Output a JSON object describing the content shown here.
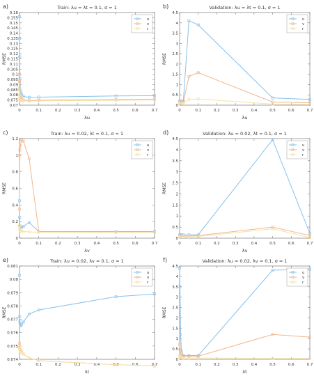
{
  "colors": {
    "u": "#86C1EC",
    "v": "#F2B58C",
    "r": "#F6E1A7"
  },
  "chart_data": [
    {
      "panel": "a)",
      "type": "line",
      "title": "Train:  λu = λt = 0.1,  σ = 1",
      "xlabel": "λu",
      "ylabel": "RMSE",
      "xlim": [
        0,
        0.7
      ],
      "ylim": [
        0.07,
        0.16
      ],
      "xticks": [
        0,
        0.1,
        0.2,
        0.3,
        0.4,
        0.5,
        0.6,
        0.7
      ],
      "xtick_labels": [
        "0",
        "0.1",
        "0.2",
        "0.3",
        "0.4",
        "0.5",
        "0.6",
        "0.7"
      ],
      "yticks": [
        0.07,
        0.075,
        0.08,
        0.085,
        0.09,
        0.095,
        0.1,
        0.105,
        0.11,
        0.115,
        0.12,
        0.125,
        0.13,
        0.135,
        0.14,
        0.145,
        0.15,
        0.155,
        0.16
      ],
      "ytick_labels": [
        "0.07",
        "0.075",
        "0.08",
        "0.085",
        "0.09",
        "0.095",
        "0.1",
        "0.105",
        "0.11",
        "0.115",
        "0.12",
        "0.125",
        "0.13",
        "0.135",
        "0.14",
        "0.145",
        "0.15",
        "0.155",
        "0.16"
      ],
      "legend": [
        "u",
        "v",
        "r"
      ],
      "legend_position": "top-right",
      "x": [
        0,
        0.0005,
        0.001,
        0.002,
        0.005,
        0.01,
        0.02,
        0.05,
        0.1,
        0.5,
        0.7
      ],
      "series": [
        {
          "name": "u",
          "values": [
            0.156,
            0.135,
            0.117,
            0.096,
            0.084,
            0.081,
            0.0785,
            0.0776,
            0.0778,
            0.079,
            0.0792
          ]
        },
        {
          "name": "v",
          "values": [
            0.1,
            0.093,
            0.086,
            0.08,
            0.0775,
            0.0762,
            0.075,
            0.0745,
            0.0748,
            0.0755,
            0.0758
          ]
        },
        {
          "name": "r",
          "values": [
            0.085,
            0.08,
            0.077,
            0.0755,
            0.0748,
            0.0745,
            0.0742,
            0.074,
            0.0742,
            0.0747,
            0.075
          ]
        }
      ]
    },
    {
      "panel": "b)",
      "type": "line",
      "title": "Validation:  λu = λt = 0.1,  σ = 1",
      "xlabel": "λu",
      "ylabel": "RMSE",
      "xlim": [
        0,
        0.7
      ],
      "ylim": [
        0,
        4.5
      ],
      "xticks": [
        0,
        0.1,
        0.2,
        0.3,
        0.4,
        0.5,
        0.6,
        0.7
      ],
      "xtick_labels": [
        "0",
        "0.1",
        "0.2",
        "0.3",
        "0.4",
        "0.5",
        "0.6",
        "0.7"
      ],
      "yticks": [
        0,
        0.5,
        1,
        1.5,
        2,
        2.5,
        3,
        3.5,
        4,
        4.5
      ],
      "ytick_labels": [
        "0",
        "0.5",
        "1",
        "1.5",
        "2",
        "2.5",
        "3",
        "3.5",
        "4",
        "4.5"
      ],
      "legend": [
        "u",
        "v",
        "r"
      ],
      "legend_position": "top-right",
      "x": [
        0,
        0.005,
        0.01,
        0.02,
        0.05,
        0.1,
        0.5,
        0.7
      ],
      "series": [
        {
          "name": "u",
          "values": [
            0.2,
            0.2,
            0.2,
            0.2,
            4.1,
            3.9,
            0.35,
            0.28
          ]
        },
        {
          "name": "v",
          "values": [
            0.15,
            0.15,
            0.15,
            0.15,
            1.4,
            1.58,
            0.15,
            0.12
          ]
        },
        {
          "name": "r",
          "values": [
            0.08,
            0.08,
            0.08,
            0.08,
            0.28,
            0.3,
            0.05,
            0.03
          ]
        }
      ]
    },
    {
      "panel": "c)",
      "type": "line",
      "title": "Train:  λu = 0.02,  λt = 0.1,  σ = 1",
      "xlabel": "λv",
      "ylabel": "RMSE",
      "xlim": [
        0,
        0.7
      ],
      "ylim": [
        0,
        1.2
      ],
      "xticks": [
        0,
        0.1,
        0.2,
        0.3,
        0.4,
        0.5,
        0.6,
        0.7
      ],
      "xtick_labels": [
        "0",
        "0.1",
        "0.2",
        "0.3",
        "0.4",
        "0.5",
        "0.6",
        "0.7"
      ],
      "yticks": [
        0,
        0.2,
        0.4,
        0.6,
        0.8,
        1,
        1.2
      ],
      "ytick_labels": [
        "0",
        "0.2",
        "0.4",
        "0.6",
        "0.8",
        "1",
        "1.2"
      ],
      "legend": [
        "u",
        "v",
        "r"
      ],
      "legend_position": "top-right",
      "x": [
        0,
        0.001,
        0.002,
        0.005,
        0.01,
        0.02,
        0.05,
        0.1,
        0.5,
        0.7
      ],
      "series": [
        {
          "name": "u",
          "values": [
            0.45,
            0.25,
            0.15,
            0.13,
            0.13,
            0.14,
            0.19,
            0.08,
            0.08,
            0.08
          ]
        },
        {
          "name": "v",
          "values": [
            0.35,
            1.0,
            1.06,
            1.12,
            1.18,
            1.17,
            0.96,
            0.08,
            0.075,
            0.075
          ]
        },
        {
          "name": "r",
          "values": [
            0.15,
            0.12,
            0.1,
            0.09,
            0.085,
            0.08,
            0.075,
            0.07,
            0.07,
            0.07
          ]
        }
      ]
    },
    {
      "panel": "d)",
      "type": "line",
      "title": "Validation:  λu = 0.02,  λt = 0.1,  σ = 1",
      "xlabel": "λv",
      "ylabel": "RMSE",
      "xlim": [
        0,
        0.7
      ],
      "ylim": [
        0,
        4.5
      ],
      "xticks": [
        0,
        0.1,
        0.2,
        0.3,
        0.4,
        0.5,
        0.6,
        0.7
      ],
      "xtick_labels": [
        "0",
        "0.1",
        "0.2",
        "0.3",
        "0.4",
        "0.5",
        "0.6",
        "0.7"
      ],
      "yticks": [
        0,
        0.5,
        1,
        1.5,
        2,
        2.5,
        3,
        3.5,
        4,
        4.5
      ],
      "ytick_labels": [
        "0",
        "0.5",
        "1",
        "1.5",
        "2",
        "2.5",
        "3",
        "3.5",
        "4",
        "4.5"
      ],
      "legend": [
        "u",
        "v",
        "r"
      ],
      "legend_position": "top-right",
      "x": [
        0,
        0.005,
        0.01,
        0.02,
        0.05,
        0.1,
        0.5,
        0.7
      ],
      "series": [
        {
          "name": "u",
          "values": [
            0.15,
            0.15,
            0.15,
            0.15,
            0.15,
            0.15,
            4.45,
            0.22
          ]
        },
        {
          "name": "v",
          "values": [
            0.1,
            0.1,
            0.1,
            0.1,
            0.1,
            0.12,
            0.5,
            0.12
          ]
        },
        {
          "name": "r",
          "values": [
            0.06,
            0.06,
            0.06,
            0.06,
            0.06,
            0.08,
            0.42,
            0.03
          ]
        }
      ]
    },
    {
      "panel": "e)",
      "type": "line",
      "title": "Train:  λu = 0.02,  λv = 0.1,  σ = 1",
      "xlabel": "λt",
      "ylabel": "RMSE",
      "xlim": [
        0,
        0.7
      ],
      "ylim": [
        0.074,
        0.081
      ],
      "xticks": [
        0,
        0.1,
        0.2,
        0.3,
        0.4,
        0.5,
        0.6,
        0.7
      ],
      "xtick_labels": [
        "0",
        "0.1",
        "0.2",
        "0.3",
        "0.4",
        "0.5",
        "0.6",
        "0.7"
      ],
      "yticks": [
        0.074,
        0.075,
        0.076,
        0.077,
        0.078,
        0.079,
        0.08,
        0.081
      ],
      "ytick_labels": [
        "0.074",
        "0.075",
        "0.076",
        "0.077",
        "0.078",
        "0.079",
        "0.08",
        "0.081"
      ],
      "legend": [
        "u",
        "v",
        "r"
      ],
      "legend_position": "top-right",
      "x": [
        0,
        0.001,
        0.002,
        0.005,
        0.01,
        0.02,
        0.05,
        0.1,
        0.5,
        0.7
      ],
      "series": [
        {
          "name": "u",
          "values": [
            0.0803,
            0.0772,
            0.0768,
            0.0765,
            0.0766,
            0.0768,
            0.0774,
            0.0777,
            0.0787,
            0.0789
          ]
        },
        {
          "name": "v",
          "values": [
            0.0752,
            0.0749,
            0.0748,
            0.0747,
            0.0746,
            0.0744,
            0.0741,
            0.0739,
            0.0736,
            0.0735
          ]
        },
        {
          "name": "r",
          "values": [
            0.0749,
            0.0748,
            0.0747,
            0.0746,
            0.0745,
            0.0744,
            0.0741,
            0.0739,
            0.0736,
            0.0735
          ]
        }
      ]
    },
    {
      "panel": "f)",
      "type": "line",
      "title": "Validation:  λu = 0.02,  λv = 0.1,  σ = 1",
      "xlabel": "λt",
      "ylabel": "RMSE",
      "xlim": [
        0,
        0.7
      ],
      "ylim": [
        0,
        4.5
      ],
      "xticks": [
        0,
        0.1,
        0.2,
        0.3,
        0.4,
        0.5,
        0.6,
        0.7
      ],
      "xtick_labels": [
        "0",
        "0.1",
        "0.2",
        "0.3",
        "0.4",
        "0.5",
        "0.6",
        "0.7"
      ],
      "yticks": [
        0,
        0.5,
        1,
        1.5,
        2,
        2.5,
        3,
        3.5,
        4,
        4.5
      ],
      "ytick_labels": [
        "0",
        "0.5",
        "1",
        "1.5",
        "2",
        "2.5",
        "3",
        "3.5",
        "4",
        "4.5"
      ],
      "legend": [
        "u",
        "v",
        "r"
      ],
      "legend_position": "top-right",
      "x": [
        0,
        0.002,
        0.005,
        0.01,
        0.02,
        0.05,
        0.1,
        0.5,
        0.7
      ],
      "series": [
        {
          "name": "u",
          "values": [
            4.4,
            3.5,
            1.2,
            0.4,
            0.18,
            0.18,
            0.18,
            4.3,
            4.35
          ]
        },
        {
          "name": "v",
          "values": [
            0.7,
            0.5,
            0.3,
            0.2,
            0.15,
            0.15,
            0.15,
            1.2,
            1.07
          ]
        },
        {
          "name": "r",
          "values": [
            0.15,
            0.12,
            0.1,
            0.08,
            0.06,
            0.06,
            0.06,
            0.05,
            0.04
          ]
        }
      ]
    }
  ]
}
